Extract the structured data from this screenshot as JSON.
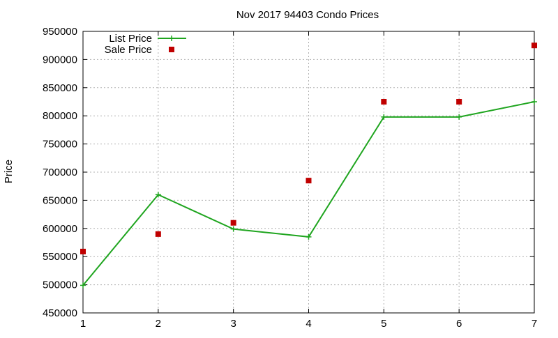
{
  "chart_data": {
    "type": "line",
    "title": "Nov 2017 94403 Condo Prices",
    "xlabel": "",
    "ylabel": "Price",
    "x": [
      1,
      2,
      3,
      4,
      5,
      6,
      7
    ],
    "xlim": [
      1,
      7
    ],
    "ylim": [
      450000,
      950000
    ],
    "xticks": [
      1,
      2,
      3,
      4,
      5,
      6,
      7
    ],
    "yticks": [
      450000,
      500000,
      550000,
      600000,
      650000,
      700000,
      750000,
      800000,
      850000,
      900000,
      950000
    ],
    "grid": true,
    "legend_position": "top-left",
    "series": [
      {
        "name": "List Price",
        "style": "line-with-plus-markers",
        "color": "#1fa51f",
        "values": [
          499000,
          660000,
          599000,
          585000,
          798000,
          798000,
          825000
        ]
      },
      {
        "name": "Sale Price",
        "style": "square-markers",
        "color": "#c00000",
        "values": [
          559000,
          590000,
          610000,
          685000,
          825000,
          825000,
          925000
        ]
      }
    ]
  }
}
